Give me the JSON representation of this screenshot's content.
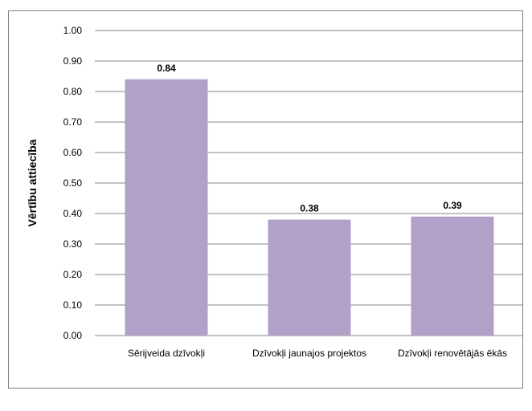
{
  "chart_data": {
    "type": "bar",
    "title": "",
    "xlabel": "",
    "ylabel": "Vērtību attiecība",
    "categories": [
      "Sērijveida dzīvokļi",
      "Dzīvokļi jaunajos projektos",
      "Dzīvokļi renovētājās ēkās"
    ],
    "values": [
      0.84,
      0.38,
      0.39
    ],
    "data_labels": [
      "0.84",
      "0.38",
      "0.39"
    ],
    "ylim": [
      0,
      1
    ],
    "yticks": [
      "0.00",
      "0.10",
      "0.20",
      "0.30",
      "0.40",
      "0.50",
      "0.60",
      "0.70",
      "0.80",
      "0.90",
      "1.00"
    ],
    "grid": true,
    "legend": "none",
    "colors": {
      "bar": "#b1a0c7",
      "grid": "#868686",
      "frame": "#7f7f7f"
    }
  }
}
